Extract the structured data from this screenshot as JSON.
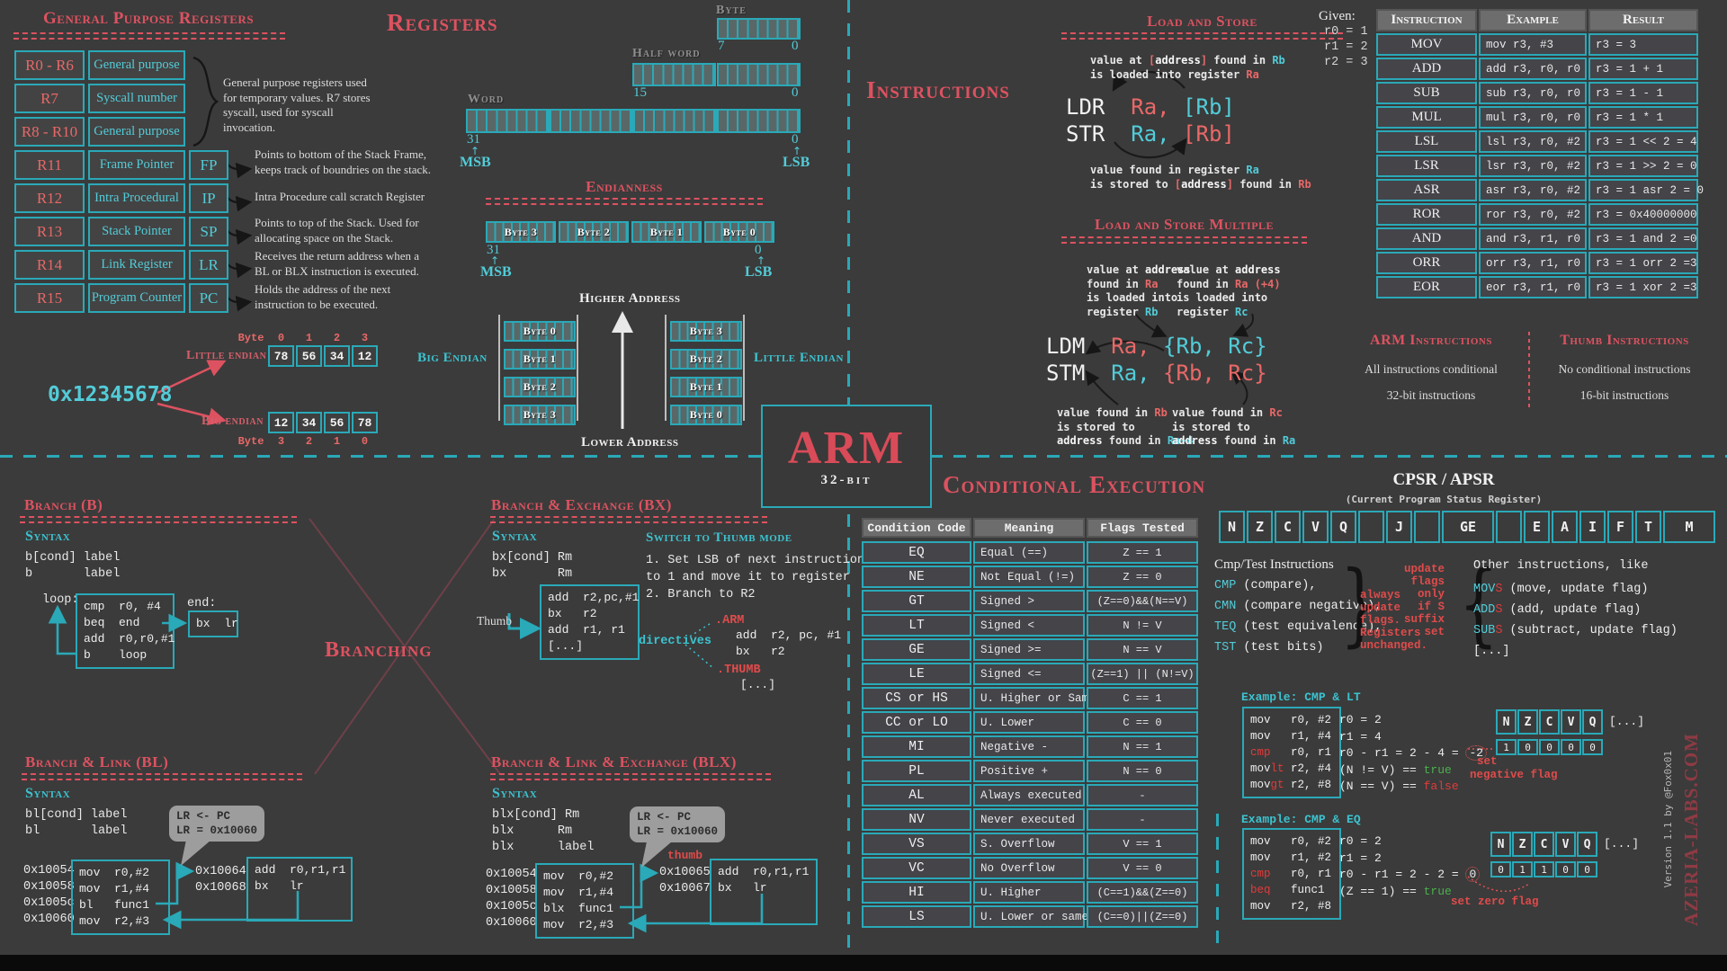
{
  "gp": {
    "title": "General Purpose Registers",
    "rows": [
      {
        "reg": "R0 - R6",
        "desc": "General purpose",
        "abbr": ""
      },
      {
        "reg": "R7",
        "desc": "Syscall number",
        "abbr": ""
      },
      {
        "reg": "R8 - R10",
        "desc": "General purpose",
        "abbr": ""
      },
      {
        "reg": "R11",
        "desc": "Frame Pointer",
        "abbr": "FP"
      },
      {
        "reg": "R12",
        "desc": "Intra Procedural",
        "abbr": "IP"
      },
      {
        "reg": "R13",
        "desc": "Stack Pointer",
        "abbr": "SP"
      },
      {
        "reg": "R14",
        "desc": "Link Register",
        "abbr": "LR"
      },
      {
        "reg": "R15",
        "desc": "Program Counter",
        "abbr": "PC"
      }
    ],
    "group_note": "General purpose registers used for temporary values. R7 stores syscall, used for syscall invocation.",
    "notes": [
      "Points to bottom of the Stack Frame, keeps track of boundries on the stack.",
      "Intra Procedure call scratch Register",
      "Points to top of the Stack. Used for allocating space on the Stack.",
      "Receives the return address when a BL or BLX instruction is executed.",
      "Holds the address of the next instruction to be executed."
    ]
  },
  "reg_diag": {
    "title": "Registers",
    "byte_label": "Byte",
    "byte_hi": "7",
    "byte_lo": "0",
    "half_label": "Half word",
    "half_hi": "15",
    "half_lo": "0",
    "word_label": "Word",
    "word_hi": "31",
    "word_lo": "0",
    "msb": "MSB",
    "lsb": "LSB",
    "arrow": "↑"
  },
  "endian": {
    "title": "Endianness",
    "word_bytes": [
      "Byte 3",
      "Byte 2",
      "Byte 1",
      "Byte 0"
    ],
    "hi": "31",
    "lo": "0",
    "msb": "MSB",
    "lsb": "LSB",
    "arrow": "↑",
    "higher": "Higher Address",
    "lower": "Lower Address",
    "big_label": "Big Endian",
    "little_label": "Little Endian",
    "big_col": [
      "Byte 0",
      "Byte 1",
      "Byte 2",
      "Byte 3"
    ],
    "little_col": [
      "Byte 3",
      "Byte 2",
      "Byte 1",
      "Byte 0"
    ]
  },
  "endian_ex": {
    "value": "0x12345678",
    "little_label": "Little endian",
    "big_label": "Big endian",
    "byte_word": "Byte",
    "little_idx": [
      "0",
      "1",
      "2",
      "3"
    ],
    "big_idx": [
      "3",
      "2",
      "1",
      "0"
    ],
    "little_bytes": [
      "78",
      "56",
      "34",
      "12"
    ],
    "big_bytes": [
      "12",
      "34",
      "56",
      "78"
    ]
  },
  "branching_title": "Branching",
  "branch_b": {
    "title": "Branch (B)",
    "syntax_label": "Syntax",
    "syntax": [
      "b[cond] label",
      "b       label"
    ],
    "loop_label": "loop:",
    "end_label": "end:",
    "loop_code": [
      "cmp  r0, #4",
      "beq  end",
      "add  r0,r0,#1",
      "b    loop"
    ],
    "end_code": [
      "bx  lr"
    ]
  },
  "branch_bx": {
    "title": "Branch & Exchange (BX)",
    "syntax_label": "Syntax",
    "syntax": [
      "bx[cond] Rm",
      "bx       Rm"
    ],
    "thumb_label": "Thumb",
    "box_code": [
      "add  r2,pc,#1",
      "bx   r2",
      "add  r1, r1",
      "[...]"
    ],
    "switch_title": "Switch to Thumb mode",
    "switch_steps": [
      "1. Set LSB of next instruction",
      "to 1 and move it to register",
      "2. Branch to R2"
    ],
    "directives_label": "directives",
    "arm_dir": ".ARM",
    "arm_code": [
      "add  r2, pc, #1",
      "bx   r2"
    ],
    "thumb_dir": ".THUMB",
    "thumb_code": [
      "[...]"
    ]
  },
  "branch_bl": {
    "title": "Branch & Link  (BL)",
    "syntax_label": "Syntax",
    "syntax": [
      "bl[cond] label",
      "bl       label"
    ],
    "bubble": [
      "LR <- PC",
      "LR = 0x10060"
    ],
    "addrs": [
      "0x10054",
      "0x10058",
      "0x1005c",
      "0x10060"
    ],
    "code": [
      "mov  r0,#2",
      "mov  r1,#4",
      "bl   func1",
      "mov  r2,#3"
    ],
    "addrs2": [
      "0x10064",
      "0x10068"
    ],
    "code2": [
      "add  r0,r1,r1",
      "bx   lr"
    ]
  },
  "branch_blx": {
    "title": "Branch & Link & Exchange (BLX)",
    "syntax_label": "Syntax",
    "syntax": [
      "blx[cond] Rm",
      "blx      Rm",
      "blx      label"
    ],
    "bubble": [
      "LR <- PC",
      "LR = 0x10060"
    ],
    "thumb_tag": "thumb",
    "addrs": [
      "0x10054",
      "0x10058",
      "0x1005c",
      "0x10060"
    ],
    "code": [
      "mov  r0,#2",
      "mov  r1,#4",
      "blx  func1",
      "mov  r2,#3"
    ],
    "addrs2": [
      "0x10065",
      "0x10067"
    ],
    "code2": [
      "add  r0,r1,r1",
      "bx   lr"
    ]
  },
  "instructions_title": "Instructions",
  "load_store": {
    "title": "Load and Store",
    "note_top": [
      [
        {
          "t": "value at "
        },
        {
          "t": "[",
          "c": "r"
        },
        {
          "t": "address",
          "c": "b"
        },
        {
          "t": "]",
          "c": "r"
        },
        {
          "t": " found in "
        },
        {
          "t": "Rb",
          "c": "t"
        }
      ],
      [
        {
          "t": "is loaded into register "
        },
        {
          "t": "Ra",
          "c": "r"
        }
      ]
    ],
    "ldr": [
      {
        "t": "LDR  "
      },
      {
        "t": "Ra, ",
        "c": "r"
      },
      {
        "t": "[Rb]",
        "c": "t"
      }
    ],
    "str": [
      {
        "t": "STR  "
      },
      {
        "t": "Ra, ",
        "c": "t"
      },
      {
        "t": "[Rb]",
        "c": "r"
      }
    ],
    "note_bottom": [
      [
        {
          "t": "value found in register "
        },
        {
          "t": "Ra",
          "c": "t"
        }
      ],
      [
        {
          "t": "is stored to "
        },
        {
          "t": "[",
          "c": "r"
        },
        {
          "t": "address",
          "c": "b"
        },
        {
          "t": "]",
          "c": "r"
        },
        {
          "t": " found in "
        },
        {
          "t": "Rb",
          "c": "r"
        }
      ]
    ]
  },
  "given": {
    "label": "Given:",
    "lines": [
      "r0 = 1",
      "r1 = 2",
      "r2 = 3"
    ]
  },
  "instr_table": {
    "headers": [
      "Instruction",
      "Example",
      "Result"
    ],
    "rows": [
      {
        "i": "MOV",
        "e": "mov r3, #3",
        "r": "r3 = 3"
      },
      {
        "i": "ADD",
        "e": "add r3, r0, r0",
        "r": "r3 = 1 + 1"
      },
      {
        "i": "SUB",
        "e": "sub r3, r0, r0",
        "r": "r3 = 1 - 1"
      },
      {
        "i": "MUL",
        "e": "mul r3, r0, r0",
        "r": "r3 = 1 * 1"
      },
      {
        "i": "LSL",
        "e": "lsl r3, r0, #2",
        "r": "r3 = 1 << 2 = 4"
      },
      {
        "i": "LSR",
        "e": "lsr r3, r0, #2",
        "r": "r3 = 1 >> 2 = 0"
      },
      {
        "i": "ASR",
        "e": "asr r3, r0, #2",
        "r": "r3 = 1 asr 2 = 0"
      },
      {
        "i": "ROR",
        "e": "ror r3, r0, #2",
        "r": "r3 = 0x40000000"
      },
      {
        "i": "AND",
        "e": "and r3, r1, r0",
        "r": "r3 = 1 and 2 =0"
      },
      {
        "i": "ORR",
        "e": "orr r3, r1, r0",
        "r": "r3 = 1 orr 2 =3"
      },
      {
        "i": "EOR",
        "e": "eor r3, r1, r0",
        "r": "r3 = 1 xor 2 =3"
      }
    ]
  },
  "arm_thumb": {
    "arm_title": "ARM Instructions",
    "arm_lines": [
      "All instructions conditional",
      "32-bit instructions"
    ],
    "thumb_title": "Thumb Instructions",
    "thumb_lines": [
      "No conditional instructions",
      "16-bit instructions"
    ]
  },
  "ldm": {
    "title": "Load and Store Multiple",
    "note_top_left": [
      [
        {
          "t": "value at "
        },
        {
          "t": "address",
          "c": "b"
        }
      ],
      [
        {
          "t": "found in "
        },
        {
          "t": "Ra",
          "c": "r"
        }
      ],
      [
        {
          "t": "is loaded into"
        }
      ],
      [
        {
          "t": "register "
        },
        {
          "t": "Rb",
          "c": "t"
        }
      ]
    ],
    "note_top_right": [
      [
        {
          "t": "value at "
        },
        {
          "t": "address",
          "c": "b"
        }
      ],
      [
        {
          "t": "found in "
        },
        {
          "t": "Ra (+4)",
          "c": "r"
        }
      ],
      [
        {
          "t": "is loaded into"
        }
      ],
      [
        {
          "t": "register "
        },
        {
          "t": "Rc",
          "c": "t"
        }
      ]
    ],
    "ldm_line": [
      {
        "t": "LDM  "
      },
      {
        "t": "Ra, ",
        "c": "r"
      },
      {
        "t": "{Rb, Rc}",
        "c": "t"
      }
    ],
    "stm_line": [
      {
        "t": "STM  "
      },
      {
        "t": "Ra, ",
        "c": "t"
      },
      {
        "t": "{Rb, Rc}",
        "c": "r"
      }
    ],
    "note_bot_left": [
      [
        {
          "t": "value found in "
        },
        {
          "t": "Rb",
          "c": "r"
        }
      ],
      [
        {
          "t": "is stored to"
        }
      ],
      [
        {
          "t": "address",
          "c": "b"
        },
        {
          "t": " found in "
        },
        {
          "t": "Ra+4",
          "c": "t"
        }
      ]
    ],
    "note_bot_right": [
      [
        {
          "t": "value found in "
        },
        {
          "t": "Rc",
          "c": "r"
        }
      ],
      [
        {
          "t": "is stored to"
        }
      ],
      [
        {
          "t": "address",
          "c": "b"
        },
        {
          "t": " found in "
        },
        {
          "t": "Ra",
          "c": "t"
        }
      ]
    ]
  },
  "arm_logo": {
    "title": "ARM",
    "sub": "32-bit"
  },
  "cond_title": "Conditional Execution",
  "cond_table": {
    "headers": [
      "Condition Code",
      "Meaning",
      "Flags Tested"
    ],
    "rows": [
      {
        "c": "EQ",
        "m": "Equal (==)",
        "f": "Z == 1"
      },
      {
        "c": "NE",
        "m": "Not Equal (!=)",
        "f": "Z == 0"
      },
      {
        "c": "GT",
        "m": "Signed >",
        "f": "(Z==0)&&(N==V)"
      },
      {
        "c": "LT",
        "m": "Signed <",
        "f": "N != V"
      },
      {
        "c": "GE",
        "m": "Signed >=",
        "f": "N == V"
      },
      {
        "c": "LE",
        "m": "Signed <=",
        "f": "(Z==1) || (N!=V)"
      },
      {
        "c": "CS or HS",
        "m": "U. Higher or Same",
        "f": "C == 1"
      },
      {
        "c": "CC or LO",
        "m": "U. Lower",
        "f": "C == 0"
      },
      {
        "c": "MI",
        "m": "Negative -",
        "f": "N == 1"
      },
      {
        "c": "PL",
        "m": "Positive +",
        "f": "N == 0"
      },
      {
        "c": "AL",
        "m": "Always executed",
        "f": "-"
      },
      {
        "c": "NV",
        "m": "Never executed",
        "f": "-"
      },
      {
        "c": "VS",
        "m": "S. Overflow",
        "f": "V == 1"
      },
      {
        "c": "VC",
        "m": "No Overflow",
        "f": "V == 0"
      },
      {
        "c": "HI",
        "m": "U. Higher",
        "f": "(C==1)&&(Z==0)"
      },
      {
        "c": "LS",
        "m": "U. Lower or same",
        "f": "(C==0)||(Z==0)"
      }
    ]
  },
  "cpsr": {
    "title": "CPSR / APSR",
    "subtitle": "(Current Program Status Register)",
    "cells": [
      {
        "l": "N"
      },
      {
        "l": "Z"
      },
      {
        "l": "C"
      },
      {
        "l": "V"
      },
      {
        "l": "Q"
      },
      {
        "l": ""
      },
      {
        "l": "J"
      },
      {
        "l": ""
      },
      {
        "l": "GE",
        "w": 2
      },
      {
        "l": ""
      },
      {
        "l": "E"
      },
      {
        "l": "A"
      },
      {
        "l": "I"
      },
      {
        "l": "F"
      },
      {
        "l": "T"
      },
      {
        "l": "M",
        "w": 2
      }
    ]
  },
  "flags_info": {
    "cmp_title": "Cmp/Test Instructions",
    "cmp_items": [
      [
        {
          "t": "CMP",
          "c": "t"
        },
        {
          "t": " (compare),"
        }
      ],
      [
        {
          "t": "CMN",
          "c": "t"
        },
        {
          "t": " (compare negative),"
        }
      ],
      [
        {
          "t": "TEQ",
          "c": "t"
        },
        {
          "t": " (test equivalence),"
        }
      ],
      [
        {
          "t": "TST",
          "c": "t"
        },
        {
          "t": " (test bits)"
        }
      ]
    ],
    "note_always": [
      "always",
      "update",
      "flags.",
      "Registers",
      "unchanged."
    ],
    "note_s": [
      "update",
      "flags",
      "only",
      "if S",
      "suffix",
      "set"
    ],
    "other_title": "Other instructions, like",
    "other_items": [
      [
        {
          "t": "MOV",
          "c": "t"
        },
        {
          "t": "S",
          "c": "re"
        },
        {
          "t": " (move, update flag)"
        }
      ],
      [
        {
          "t": "ADD",
          "c": "t"
        },
        {
          "t": "S",
          "c": "re"
        },
        {
          "t": " (add, update flag)"
        }
      ],
      [
        {
          "t": "SUB",
          "c": "t"
        },
        {
          "t": "S",
          "c": "re"
        },
        {
          "t": " (subtract, update flag)"
        }
      ],
      [
        {
          "t": "[...]"
        }
      ]
    ]
  },
  "ex_lt": {
    "title": "Example: CMP & LT",
    "code": [
      [
        {
          "t": "mov   r0, #2"
        }
      ],
      [
        {
          "t": "mov   r1, #4"
        }
      ],
      [
        {
          "t": "cmp",
          "c": "re"
        },
        {
          "t": "   r0, r1"
        }
      ],
      [
        {
          "t": "mov",
          "c": "w"
        },
        {
          "t": "lt",
          "c": "re"
        },
        {
          "t": " r2, #4"
        }
      ],
      [
        {
          "t": "mov",
          "c": "w"
        },
        {
          "t": "gt",
          "c": "re"
        },
        {
          "t": " r2, #8"
        }
      ]
    ],
    "result": [
      [
        {
          "t": "r0 = 2"
        }
      ],
      [
        {
          "t": "r1 = 4"
        }
      ],
      [
        {
          "t": "r0 - r1 = 2 - 4 = "
        },
        {
          "t": "-2",
          "c": "circ"
        }
      ],
      [
        {
          "t": "(N != V) == "
        },
        {
          "t": "true",
          "c": "g"
        }
      ],
      [
        {
          "t": "(N == V) == "
        },
        {
          "t": "false",
          "c": "re"
        }
      ]
    ],
    "set_lines": [
      "set",
      "negative flag"
    ],
    "flags_header": [
      "N",
      "Z",
      "C",
      "V",
      "Q"
    ],
    "flags_more": "[...]",
    "flags_values": [
      "1",
      "0",
      "0",
      "0",
      "0"
    ]
  },
  "ex_eq": {
    "title": "Example: CMP & EQ",
    "code": [
      [
        {
          "t": "mov   r0, #2"
        }
      ],
      [
        {
          "t": "mov   r1, #2"
        }
      ],
      [
        {
          "t": "cmp",
          "c": "re"
        },
        {
          "t": "   r0, r1"
        }
      ],
      [
        {
          "t": "beq",
          "c": "re"
        },
        {
          "t": "   func1"
        }
      ],
      [
        {
          "t": "mov   r2, #8"
        }
      ]
    ],
    "result": [
      [
        {
          "t": "r0 = 2"
        }
      ],
      [
        {
          "t": "r1 = 2"
        }
      ],
      [
        {
          "t": "r0 - r1 = 2 - 2 = "
        },
        {
          "t": "0",
          "c": "circ"
        }
      ],
      [
        {
          "t": "(Z == 1) == "
        },
        {
          "t": "true",
          "c": "g"
        }
      ]
    ],
    "set_lines": [
      "set zero flag"
    ],
    "flags_header": [
      "N",
      "Z",
      "C",
      "V",
      "Q"
    ],
    "flags_more": "[...]",
    "flags_values": [
      "0",
      "1",
      "1",
      "0",
      "0"
    ]
  },
  "side": {
    "version": "Version 1.1 by @Fox0x01",
    "brand": "AZERIA-LABS.COM"
  }
}
